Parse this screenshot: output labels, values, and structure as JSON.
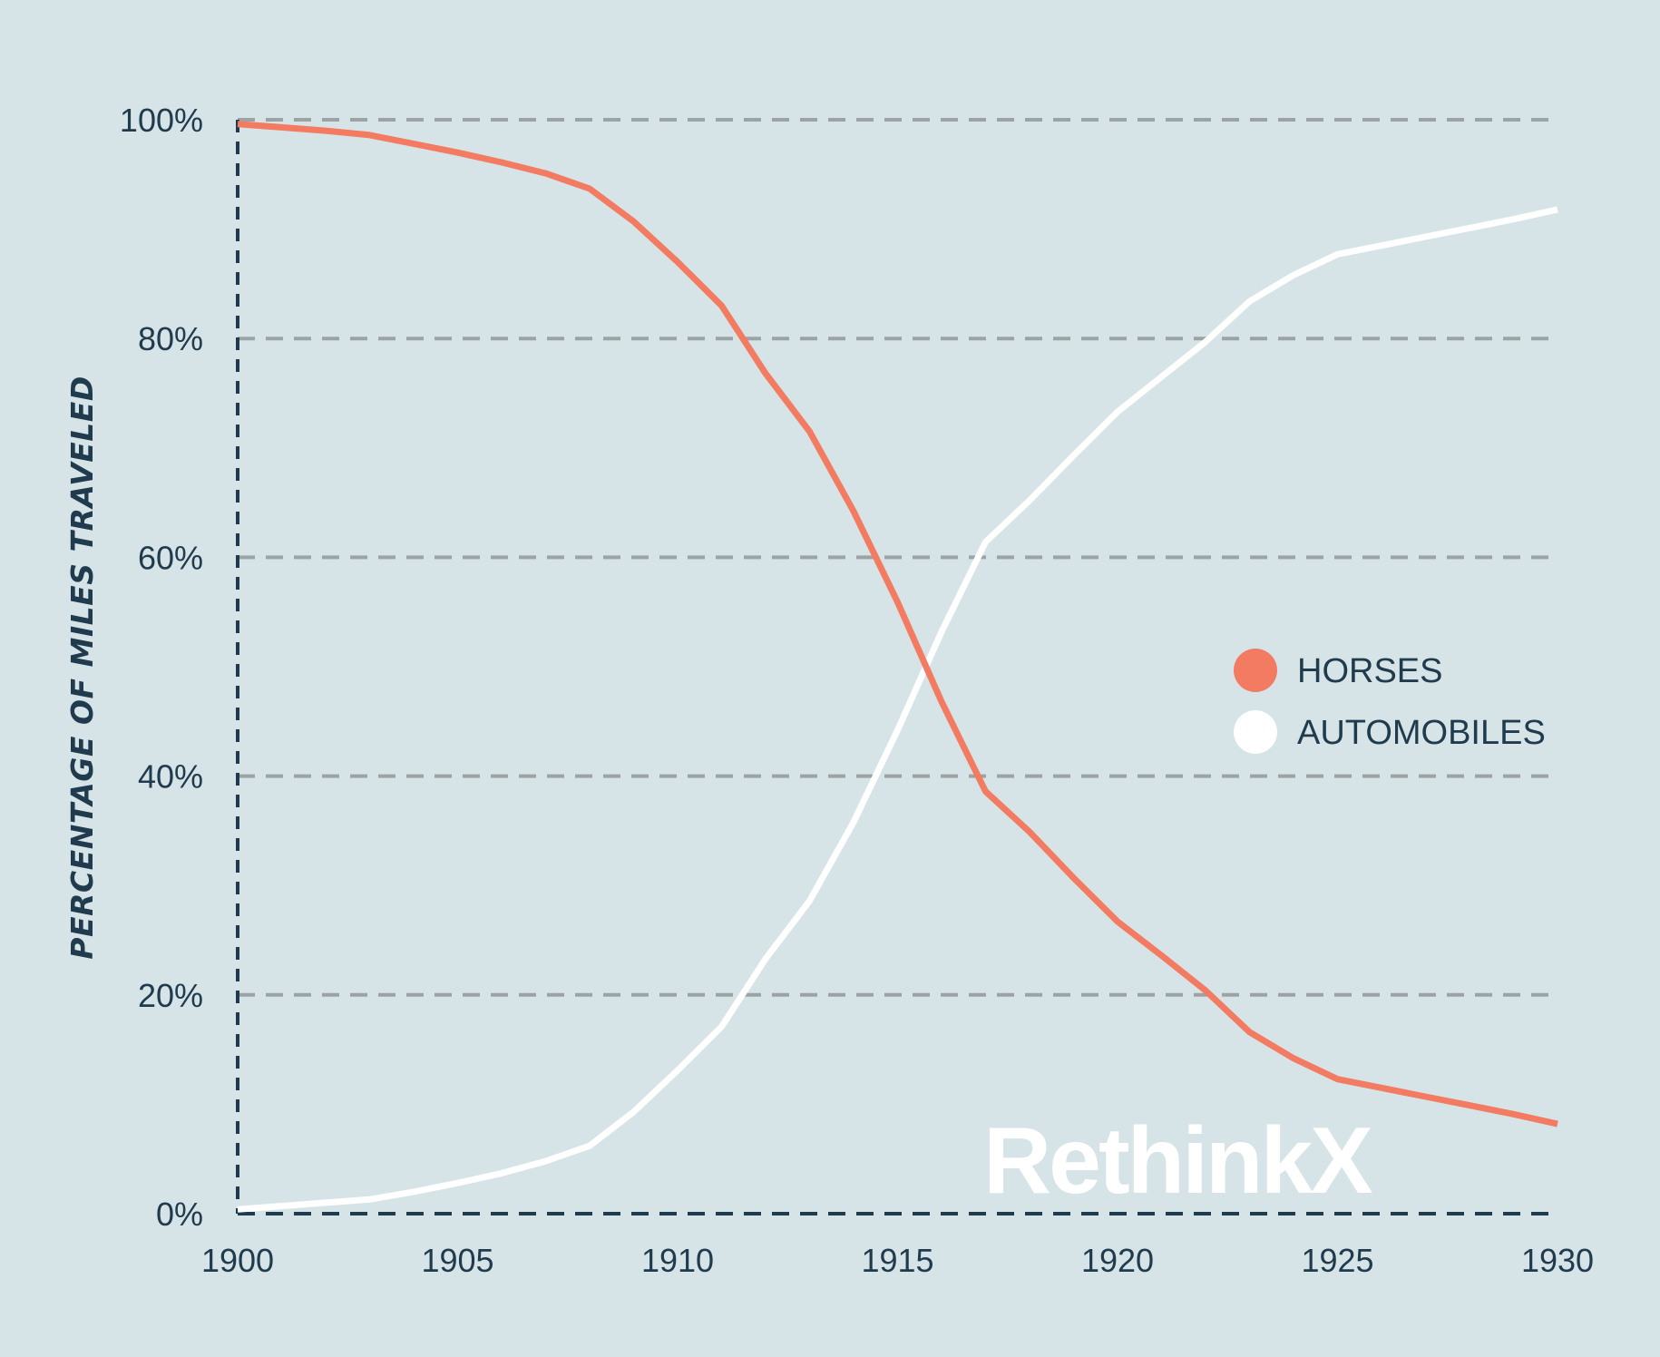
{
  "chart_data": {
    "type": "line",
    "title": "",
    "xlabel": "",
    "ylabel": "PERCENTAGE OF MILES TRAVELED",
    "x": [
      1900,
      1901,
      1902,
      1903,
      1904,
      1905,
      1906,
      1907,
      1908,
      1909,
      1910,
      1911,
      1912,
      1913,
      1914,
      1915,
      1916,
      1917,
      1918,
      1919,
      1920,
      1921,
      1922,
      1923,
      1924,
      1925,
      1926,
      1927,
      1928,
      1929,
      1930
    ],
    "series": [
      {
        "name": "HORSES",
        "color": "#f27b61",
        "values": [
          99.6,
          99.3,
          99.0,
          98.6,
          97.8,
          97.0,
          96.1,
          95.1,
          93.7,
          90.7,
          87.0,
          83.0,
          76.8,
          71.5,
          64.2,
          55.9,
          46.8,
          38.6,
          34.9,
          30.7,
          26.7,
          23.6,
          20.4,
          16.6,
          14.2,
          12.3,
          11.5,
          10.7,
          9.9,
          9.1,
          8.2
        ],
        "labels_text": "HORSES"
      },
      {
        "name": "AUTOMOBILES",
        "color": "#ffffff",
        "values": [
          0.4,
          0.7,
          1.0,
          1.3,
          2.0,
          2.8,
          3.7,
          4.8,
          6.2,
          9.3,
          13.1,
          17.1,
          23.3,
          28.6,
          35.8,
          44.2,
          53.2,
          61.4,
          65.2,
          69.3,
          73.3,
          76.5,
          79.7,
          83.4,
          85.8,
          87.7,
          88.5,
          89.3,
          90.1,
          90.9,
          91.8
        ],
        "labels_text": "AUTOMOBILES"
      }
    ],
    "xlim": [
      1900,
      1930
    ],
    "ylim": [
      0,
      100
    ],
    "xticks": [
      "1900",
      "1905",
      "1910",
      "1915",
      "1920",
      "1925",
      "1930"
    ],
    "yticks": [
      "0%",
      "20%",
      "40%",
      "60%",
      "80%",
      "100%"
    ],
    "grid": "horizontal dashed",
    "legend": "right-middle"
  },
  "legend": {
    "horses_label": "HORSES",
    "automobiles_label": "AUTOMOBILES"
  },
  "watermark": {
    "text": "RethinkX"
  },
  "colors": {
    "background": "#d7e4e7",
    "axis": "#1f3b4d",
    "grid": "#9ca3a4"
  }
}
